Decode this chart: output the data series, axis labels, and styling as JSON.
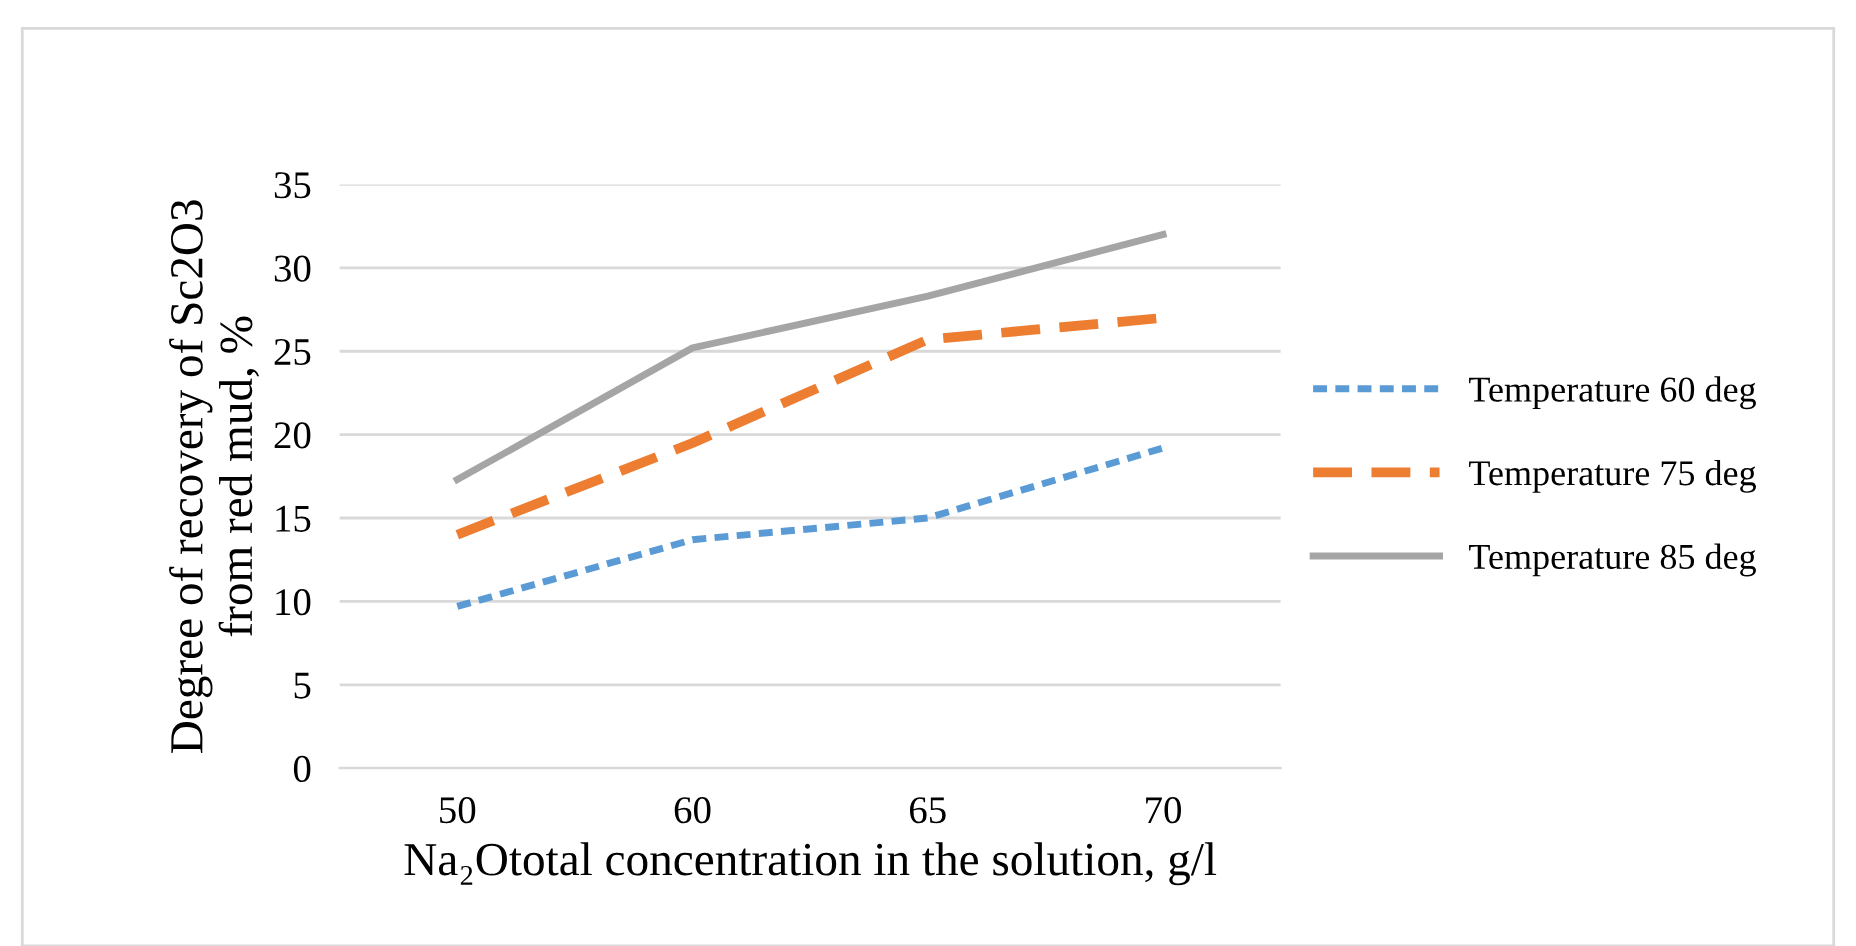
{
  "chart_data": {
    "type": "line",
    "xlabel": "Na₂Ototal concentration in the solution, g/l",
    "ylabel": "Degree of recovery of Sc2O3\nfrom red mud, %",
    "categories": [
      "50",
      "60",
      "65",
      "70"
    ],
    "series": [
      {
        "name": "Temperature 60 deg",
        "color": "#5b9bd5",
        "line_style": "dashed",
        "values": [
          9.7,
          13.7,
          15.0,
          19.2
        ]
      },
      {
        "name": "Temperature 75 deg",
        "color": "#ed7d31",
        "line_style": "dashed",
        "values": [
          14.0,
          19.5,
          25.7,
          27.0
        ]
      },
      {
        "name": "Temperature 85 deg",
        "color": "#a5a5a5",
        "line_style": "solid",
        "values": [
          17.3,
          25.2,
          28.3,
          32.0
        ]
      }
    ],
    "ylim": [
      0,
      35
    ],
    "yticks": [
      0,
      5,
      10,
      15,
      20,
      25,
      30,
      35
    ],
    "grid": "y",
    "legend": "right",
    "marker": "none"
  }
}
